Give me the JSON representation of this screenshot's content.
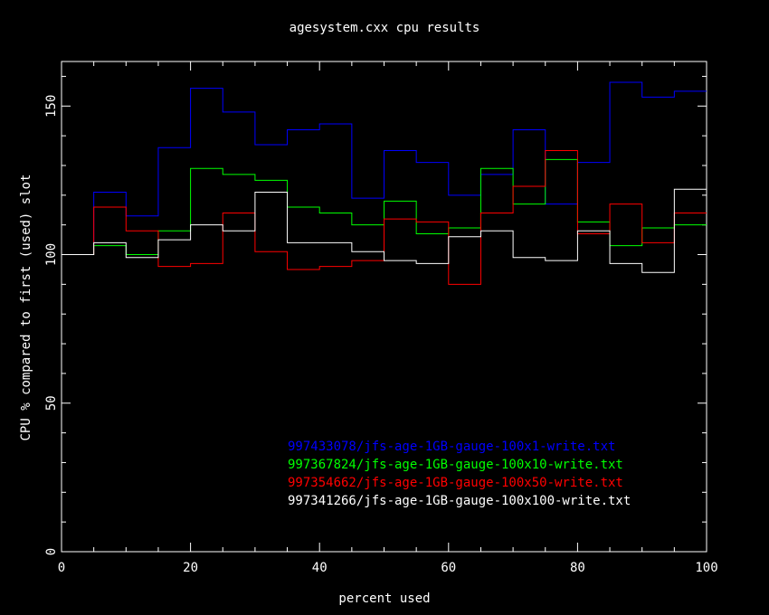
{
  "chart_data": {
    "type": "line",
    "step": true,
    "title": "agesystem.cxx cpu results",
    "xlabel": "percent used",
    "ylabel": "CPU % compared to first (used) slot",
    "xlim": [
      0,
      100
    ],
    "ylim": [
      0,
      165
    ],
    "xticks": [
      "0",
      "20",
      "40",
      "60",
      "80",
      "100"
    ],
    "yticks": [
      "0",
      "50",
      "100",
      "150"
    ],
    "grid": false,
    "legend_position": "bottom-right",
    "bin_edges": [
      0,
      5,
      10,
      15,
      20,
      25,
      30,
      35,
      40,
      45,
      50,
      55,
      60,
      65,
      70,
      75,
      80,
      85,
      90,
      95,
      100
    ],
    "series": [
      {
        "name": "997433078/jfs-age-1GB-gauge-100x1-write.txt",
        "color": "#0000ff",
        "values": [
          100,
          121,
          113,
          136,
          156,
          148,
          137,
          142,
          144,
          119,
          135,
          131,
          120,
          127,
          142,
          117,
          131,
          158,
          153,
          155
        ]
      },
      {
        "name": "997367824/jfs-age-1GB-gauge-100x10-write.txt",
        "color": "#00ff00",
        "values": [
          100,
          103,
          100,
          108,
          129,
          127,
          125,
          116,
          114,
          110,
          118,
          107,
          109,
          129,
          117,
          132,
          111,
          103,
          109,
          110
        ]
      },
      {
        "name": "997354662/jfs-age-1GB-gauge-100x50-write.txt",
        "color": "#ff0000",
        "values": [
          100,
          116,
          108,
          96,
          97,
          114,
          101,
          95,
          96,
          98,
          112,
          111,
          90,
          114,
          123,
          135,
          107,
          117,
          104,
          114
        ]
      },
      {
        "name": "997341266/jfs-age-1GB-gauge-100x100-write.txt",
        "color": "#ffffff",
        "values": [
          100,
          104,
          99,
          105,
          110,
          108,
          121,
          104,
          104,
          101,
          98,
          97,
          106,
          108,
          99,
          98,
          108,
          97,
          94,
          122
        ]
      }
    ]
  },
  "colors": {
    "background": "#000000",
    "axes": "#ffffff",
    "text": "#ffffff"
  }
}
